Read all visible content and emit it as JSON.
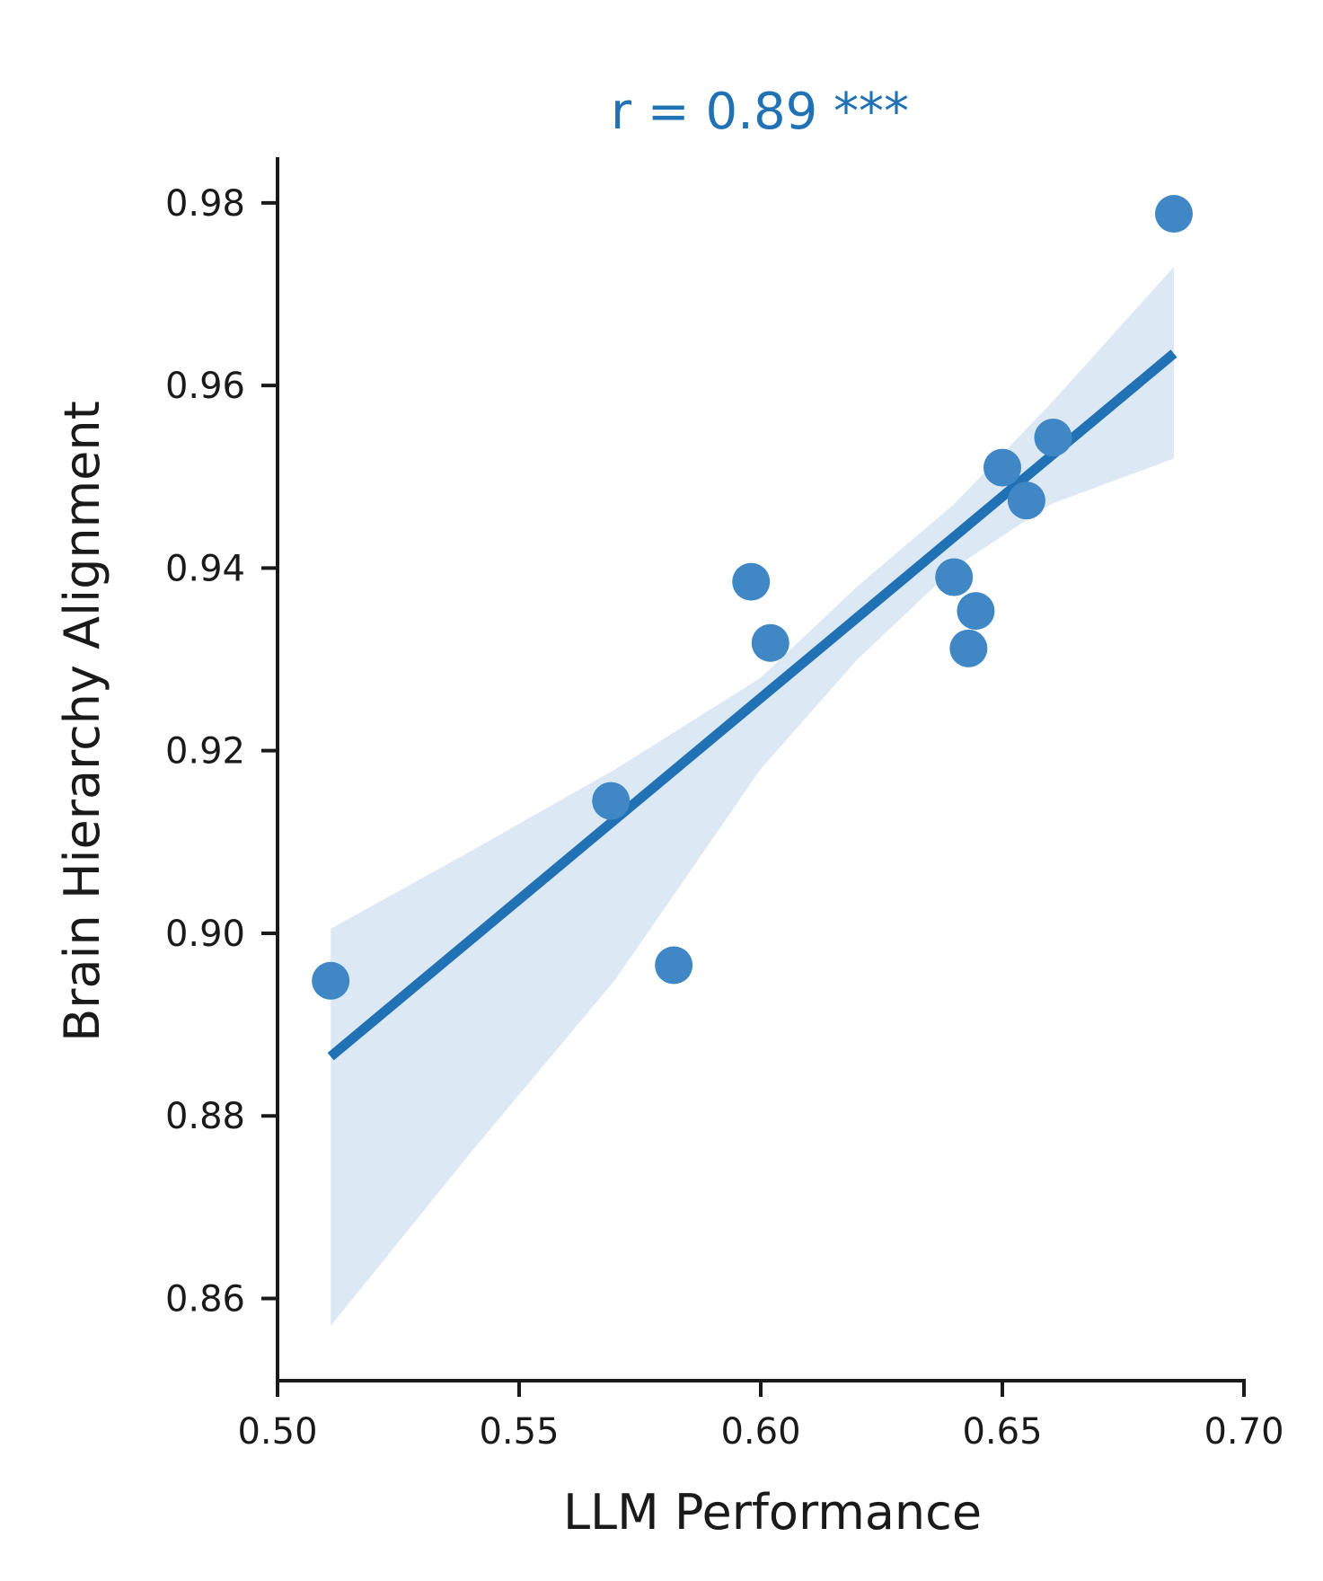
{
  "chart_data": {
    "type": "scatter",
    "title": "",
    "annotation": "r = 0.89 ***",
    "xlabel": "LLM Performance",
    "ylabel": "Brain Hierarchy Alignment",
    "xlim": [
      0.5,
      0.7
    ],
    "ylim": [
      0.851,
      0.985
    ],
    "xticks": [
      0.5,
      0.55,
      0.6,
      0.65,
      0.7
    ],
    "xtick_labels": [
      "0.50",
      "0.55",
      "0.60",
      "0.65",
      "0.70"
    ],
    "yticks": [
      0.86,
      0.88,
      0.9,
      0.92,
      0.94,
      0.96,
      0.98
    ],
    "ytick_labels": [
      "0.86",
      "0.88",
      "0.90",
      "0.92",
      "0.94",
      "0.96",
      "0.98"
    ],
    "grid": false,
    "points": [
      {
        "x": 0.511,
        "y": 0.8948
      },
      {
        "x": 0.569,
        "y": 0.9145
      },
      {
        "x": 0.582,
        "y": 0.8965
      },
      {
        "x": 0.598,
        "y": 0.9385
      },
      {
        "x": 0.602,
        "y": 0.9318
      },
      {
        "x": 0.64,
        "y": 0.939
      },
      {
        "x": 0.643,
        "y": 0.9312
      },
      {
        "x": 0.6445,
        "y": 0.9353
      },
      {
        "x": 0.65,
        "y": 0.951
      },
      {
        "x": 0.655,
        "y": 0.9474
      },
      {
        "x": 0.6605,
        "y": 0.9543
      },
      {
        "x": 0.6855,
        "y": 0.9788
      }
    ],
    "regression": {
      "x": [
        0.511,
        0.6855
      ],
      "y": [
        0.8865,
        0.9635
      ]
    },
    "confidence_band": {
      "x": [
        0.511,
        0.54,
        0.57,
        0.6,
        0.62,
        0.64,
        0.66,
        0.6855
      ],
      "lower": [
        0.857,
        0.876,
        0.895,
        0.918,
        0.93,
        0.94,
        0.947,
        0.952
      ],
      "upper": [
        0.9005,
        0.909,
        0.918,
        0.928,
        0.938,
        0.947,
        0.958,
        0.973
      ]
    },
    "colors": {
      "points": "#3f88c5",
      "line": "#2171b5",
      "band": "#dce9f5",
      "annotation": "#2171b5",
      "axis": "#1a1a1a"
    }
  }
}
